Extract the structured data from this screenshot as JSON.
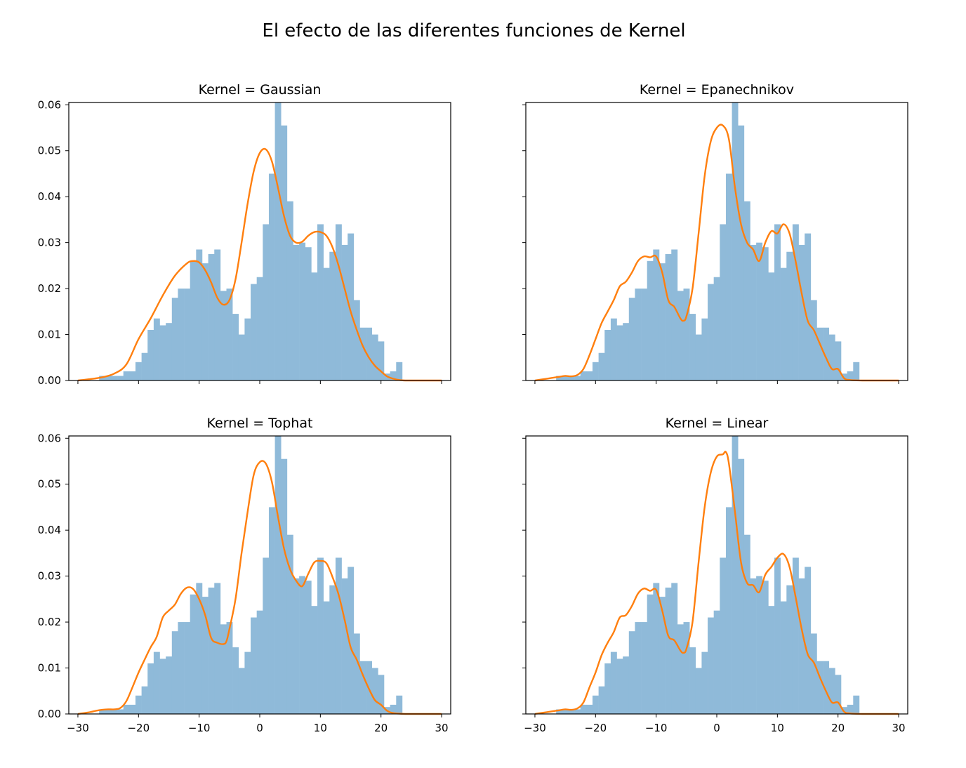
{
  "figure": {
    "title": "El efecto de las diferentes funciones de Kernel"
  },
  "colors": {
    "hist": "#8fbad9",
    "kde": "#ff7f0e",
    "axes": "#000000"
  },
  "chart_data": [
    {
      "type": "bar",
      "title": "Kernel = Gaussian",
      "xlim": [
        -31.5,
        31.5
      ],
      "ylim": [
        0,
        0.0605
      ],
      "xticks": [
        -30,
        -20,
        -10,
        0,
        10,
        20,
        30
      ],
      "yticks": [
        0.0,
        0.01,
        0.02,
        0.03,
        0.04,
        0.05,
        0.06
      ],
      "hist_x_start": -26.5,
      "hist_bin_width": 1.0,
      "hist_values": [
        0.001,
        0.001,
        0.001,
        0.001,
        0.002,
        0.002,
        0.004,
        0.006,
        0.011,
        0.0135,
        0.012,
        0.0125,
        0.018,
        0.02,
        0.02,
        0.026,
        0.0285,
        0.0255,
        0.0275,
        0.0285,
        0.0195,
        0.02,
        0.0145,
        0.01,
        0.0135,
        0.021,
        0.0225,
        0.034,
        0.045,
        0.0605,
        0.0555,
        0.039,
        0.0295,
        0.03,
        0.029,
        0.0235,
        0.034,
        0.0245,
        0.028,
        0.034,
        0.0295,
        0.032,
        0.0175,
        0.0115,
        0.0115,
        0.01,
        0.0085,
        0.0015,
        0.002,
        0.004
      ],
      "kde": {
        "x": [
          -30,
          -28,
          -26,
          -24,
          -22,
          -20,
          -18,
          -16,
          -14,
          -12,
          -11,
          -10,
          -9,
          -8,
          -7,
          -6,
          -5,
          -4,
          -3,
          -2,
          -1,
          0,
          1,
          2,
          3,
          4,
          5,
          6,
          7,
          8,
          9,
          10,
          11,
          12,
          13,
          14,
          15,
          16,
          17,
          18,
          19,
          20,
          21,
          22,
          23,
          24,
          26,
          28,
          30
        ],
        "y": [
          0,
          0.0003,
          0.0007,
          0.0015,
          0.0035,
          0.009,
          0.0135,
          0.0185,
          0.0228,
          0.0255,
          0.026,
          0.0257,
          0.024,
          0.0213,
          0.018,
          0.0165,
          0.0175,
          0.022,
          0.03,
          0.0385,
          0.0455,
          0.0495,
          0.0503,
          0.0477,
          0.042,
          0.0358,
          0.0315,
          0.03,
          0.0302,
          0.0315,
          0.0323,
          0.0323,
          0.0315,
          0.029,
          0.025,
          0.02,
          0.015,
          0.011,
          0.0075,
          0.005,
          0.0032,
          0.002,
          0.0009,
          0.0004,
          0.0001,
          0,
          0,
          0,
          0
        ]
      }
    },
    {
      "type": "bar",
      "title": "Kernel = Epanechnikov",
      "xlim": [
        -31.5,
        31.5
      ],
      "ylim": [
        0,
        0.0605
      ],
      "xticks": [
        -30,
        -20,
        -10,
        0,
        10,
        20,
        30
      ],
      "yticks": [
        0.0,
        0.01,
        0.02,
        0.03,
        0.04,
        0.05,
        0.06
      ],
      "hist_x_start": -26.5,
      "hist_bin_width": 1.0,
      "hist_values": [
        0.001,
        0.001,
        0.001,
        0.001,
        0.002,
        0.002,
        0.004,
        0.006,
        0.011,
        0.0135,
        0.012,
        0.0125,
        0.018,
        0.02,
        0.02,
        0.026,
        0.0285,
        0.0255,
        0.0275,
        0.0285,
        0.0195,
        0.02,
        0.0145,
        0.01,
        0.0135,
        0.021,
        0.0225,
        0.034,
        0.045,
        0.0605,
        0.0555,
        0.039,
        0.0295,
        0.03,
        0.029,
        0.0235,
        0.034,
        0.0245,
        0.028,
        0.034,
        0.0295,
        0.032,
        0.0175,
        0.0115,
        0.0115,
        0.01,
        0.0085,
        0.0015,
        0.002,
        0.004
      ],
      "kde": {
        "x": [
          -30,
          -28,
          -27,
          -26,
          -25,
          -24,
          -23,
          -22,
          -21,
          -20,
          -19,
          -18,
          -17,
          -16,
          -15,
          -14,
          -13,
          -12,
          -11,
          -10,
          -9,
          -8,
          -7,
          -6,
          -5.5,
          -5,
          -4,
          -3,
          -2,
          -1,
          0,
          1,
          2,
          3,
          4,
          5,
          6,
          7,
          8,
          9,
          10,
          11,
          12,
          13,
          14,
          15,
          16,
          17,
          18,
          19,
          20,
          21,
          22,
          24,
          26,
          28,
          30
        ],
        "y": [
          0,
          0.0004,
          0.0006,
          0.0008,
          0.001,
          0.0009,
          0.0012,
          0.0025,
          0.0055,
          0.009,
          0.0125,
          0.015,
          0.0175,
          0.0205,
          0.0215,
          0.0235,
          0.026,
          0.027,
          0.0268,
          0.027,
          0.0235,
          0.0175,
          0.016,
          0.0135,
          0.013,
          0.014,
          0.02,
          0.032,
          0.0445,
          0.052,
          0.055,
          0.0555,
          0.0525,
          0.042,
          0.034,
          0.03,
          0.0285,
          0.026,
          0.03,
          0.0325,
          0.032,
          0.034,
          0.032,
          0.026,
          0.019,
          0.013,
          0.011,
          0.008,
          0.005,
          0.0025,
          0.0025,
          0.0005,
          0.0001,
          0,
          0,
          0,
          0
        ]
      }
    },
    {
      "type": "bar",
      "title": "Kernel = Tophat",
      "xlim": [
        -31.5,
        31.5
      ],
      "ylim": [
        0,
        0.0605
      ],
      "xticks": [
        -30,
        -20,
        -10,
        0,
        10,
        20,
        30
      ],
      "yticks": [
        0.0,
        0.01,
        0.02,
        0.03,
        0.04,
        0.05,
        0.06
      ],
      "hist_x_start": -26.5,
      "hist_bin_width": 1.0,
      "hist_values": [
        0.001,
        0.001,
        0.001,
        0.001,
        0.002,
        0.002,
        0.004,
        0.006,
        0.011,
        0.0135,
        0.012,
        0.0125,
        0.018,
        0.02,
        0.02,
        0.026,
        0.0285,
        0.0255,
        0.0275,
        0.0285,
        0.0195,
        0.02,
        0.0145,
        0.01,
        0.0135,
        0.021,
        0.0225,
        0.034,
        0.045,
        0.0605,
        0.0555,
        0.039,
        0.0295,
        0.03,
        0.029,
        0.0235,
        0.034,
        0.0245,
        0.028,
        0.034,
        0.0295,
        0.032,
        0.0175,
        0.0115,
        0.0115,
        0.01,
        0.0085,
        0.0015,
        0.002,
        0.004
      ],
      "kde": {
        "x": [
          -30,
          -28,
          -27,
          -26,
          -25,
          -24,
          -23,
          -22,
          -21,
          -20,
          -19,
          -18,
          -17,
          -16,
          -15,
          -14,
          -13,
          -12,
          -11,
          -10,
          -9,
          -8,
          -7,
          -6,
          -5.5,
          -5,
          -4,
          -3,
          -2,
          -1,
          0,
          1,
          2,
          3,
          4,
          5,
          6,
          7,
          8,
          9,
          10,
          11,
          12,
          13,
          14,
          15,
          16,
          17,
          18,
          19,
          20,
          21,
          22,
          24,
          26,
          28,
          30
        ],
        "y": [
          0,
          0.0004,
          0.0007,
          0.0009,
          0.001,
          0.001,
          0.0013,
          0.0028,
          0.0058,
          0.009,
          0.0118,
          0.0145,
          0.0168,
          0.021,
          0.0225,
          0.0238,
          0.0262,
          0.0275,
          0.0272,
          0.025,
          0.0215,
          0.0165,
          0.0155,
          0.0152,
          0.0158,
          0.0185,
          0.025,
          0.035,
          0.044,
          0.052,
          0.0548,
          0.0545,
          0.0505,
          0.043,
          0.036,
          0.0315,
          0.029,
          0.0278,
          0.0305,
          0.033,
          0.0333,
          0.0328,
          0.0298,
          0.026,
          0.0205,
          0.0145,
          0.0118,
          0.0085,
          0.0055,
          0.003,
          0.002,
          0.0007,
          0.0002,
          0,
          0,
          0,
          0
        ]
      }
    },
    {
      "type": "bar",
      "title": "Kernel = Linear",
      "xlim": [
        -31.5,
        31.5
      ],
      "ylim": [
        0,
        0.0605
      ],
      "xticks": [
        -30,
        -20,
        -10,
        0,
        10,
        20,
        30
      ],
      "yticks": [
        0.0,
        0.01,
        0.02,
        0.03,
        0.04,
        0.05,
        0.06
      ],
      "hist_x_start": -26.5,
      "hist_bin_width": 1.0,
      "hist_values": [
        0.001,
        0.001,
        0.001,
        0.001,
        0.002,
        0.002,
        0.004,
        0.006,
        0.011,
        0.0135,
        0.012,
        0.0125,
        0.018,
        0.02,
        0.02,
        0.026,
        0.0285,
        0.0255,
        0.0275,
        0.0285,
        0.0195,
        0.02,
        0.0145,
        0.01,
        0.0135,
        0.021,
        0.0225,
        0.034,
        0.045,
        0.0605,
        0.0555,
        0.039,
        0.0295,
        0.03,
        0.029,
        0.0235,
        0.034,
        0.0245,
        0.028,
        0.034,
        0.0295,
        0.032,
        0.0175,
        0.0115,
        0.0115,
        0.01,
        0.0085,
        0.0015,
        0.002,
        0.004
      ],
      "kde": {
        "x": [
          -30,
          -28,
          -27,
          -26,
          -25,
          -24,
          -23,
          -22,
          -21,
          -20,
          -19,
          -18,
          -17,
          -16,
          -15,
          -14,
          -13,
          -12,
          -11,
          -10,
          -9,
          -8,
          -7,
          -6,
          -5.5,
          -5,
          -4,
          -3,
          -2,
          -1,
          0,
          1,
          1.5,
          2,
          3,
          4,
          5,
          6,
          7,
          8,
          9,
          10,
          11,
          12,
          13,
          14,
          15,
          16,
          17,
          18,
          19,
          20,
          21,
          22,
          24,
          26,
          28,
          30
        ],
        "y": [
          0,
          0.0004,
          0.0006,
          0.0008,
          0.001,
          0.0009,
          0.0012,
          0.0025,
          0.0058,
          0.009,
          0.0128,
          0.0155,
          0.0178,
          0.021,
          0.0215,
          0.0235,
          0.0262,
          0.0273,
          0.0268,
          0.027,
          0.0225,
          0.017,
          0.016,
          0.0138,
          0.0133,
          0.0142,
          0.02,
          0.033,
          0.045,
          0.0525,
          0.056,
          0.0565,
          0.057,
          0.0545,
          0.044,
          0.033,
          0.0285,
          0.028,
          0.0265,
          0.0303,
          0.032,
          0.034,
          0.0348,
          0.032,
          0.0255,
          0.0185,
          0.013,
          0.0112,
          0.008,
          0.005,
          0.0025,
          0.0025,
          0.0005,
          0.0001,
          0,
          0,
          0,
          0
        ]
      }
    }
  ]
}
